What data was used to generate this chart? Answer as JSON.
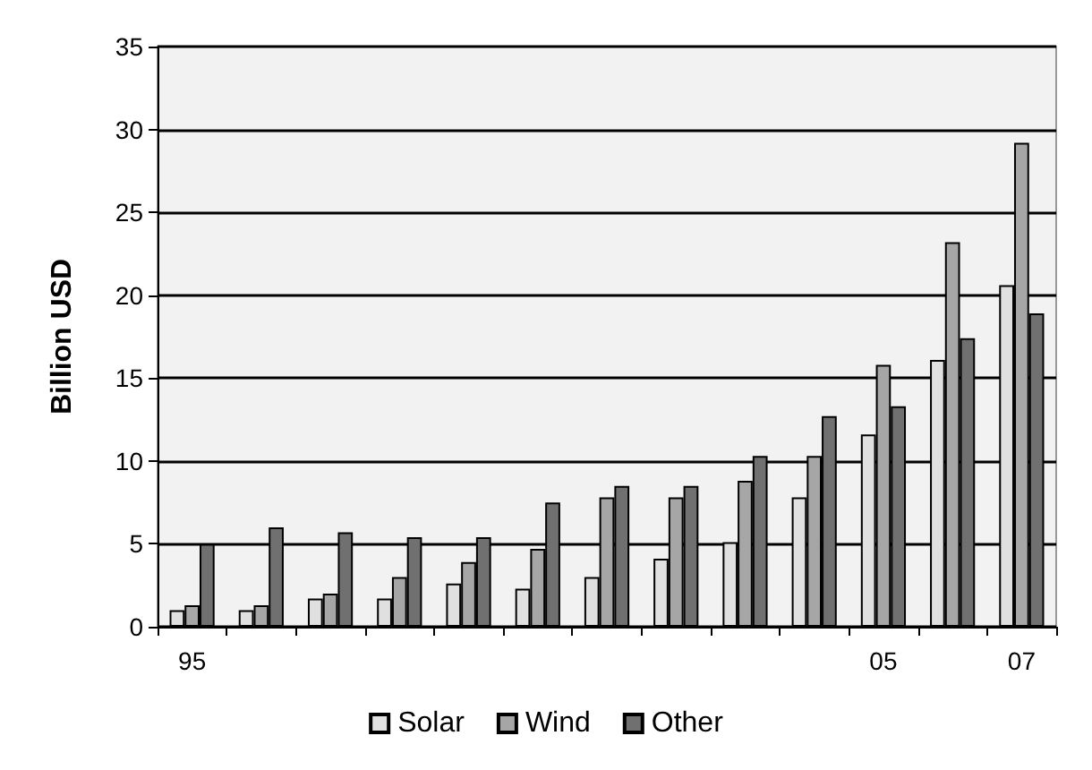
{
  "chart_data": {
    "type": "bar",
    "ylabel": "Billion USD",
    "categories": [
      "95",
      null,
      null,
      null,
      null,
      null,
      null,
      null,
      null,
      null,
      "05",
      null,
      "07"
    ],
    "series": [
      {
        "name": "Solar",
        "color": "#e0e0e0",
        "values": [
          1.0,
          1.0,
          1.7,
          1.7,
          2.6,
          2.3,
          3.0,
          4.1,
          5.1,
          7.8,
          11.6,
          16.1,
          20.6
        ]
      },
      {
        "name": "Wind",
        "color": "#a6a6a6",
        "values": [
          1.3,
          1.3,
          2.0,
          3.0,
          3.9,
          4.7,
          7.8,
          7.8,
          8.8,
          10.3,
          15.8,
          23.2,
          29.2
        ]
      },
      {
        "name": "Other",
        "color": "#707070",
        "values": [
          5.0,
          6.0,
          5.7,
          5.4,
          5.4,
          7.5,
          8.5,
          8.5,
          10.3,
          12.7,
          13.3,
          17.4,
          18.9
        ]
      }
    ],
    "ylim": [
      0,
      35
    ],
    "yticks": [
      0,
      5,
      10,
      15,
      20,
      25,
      30,
      35
    ],
    "grid": "y",
    "legend": "bottom"
  }
}
